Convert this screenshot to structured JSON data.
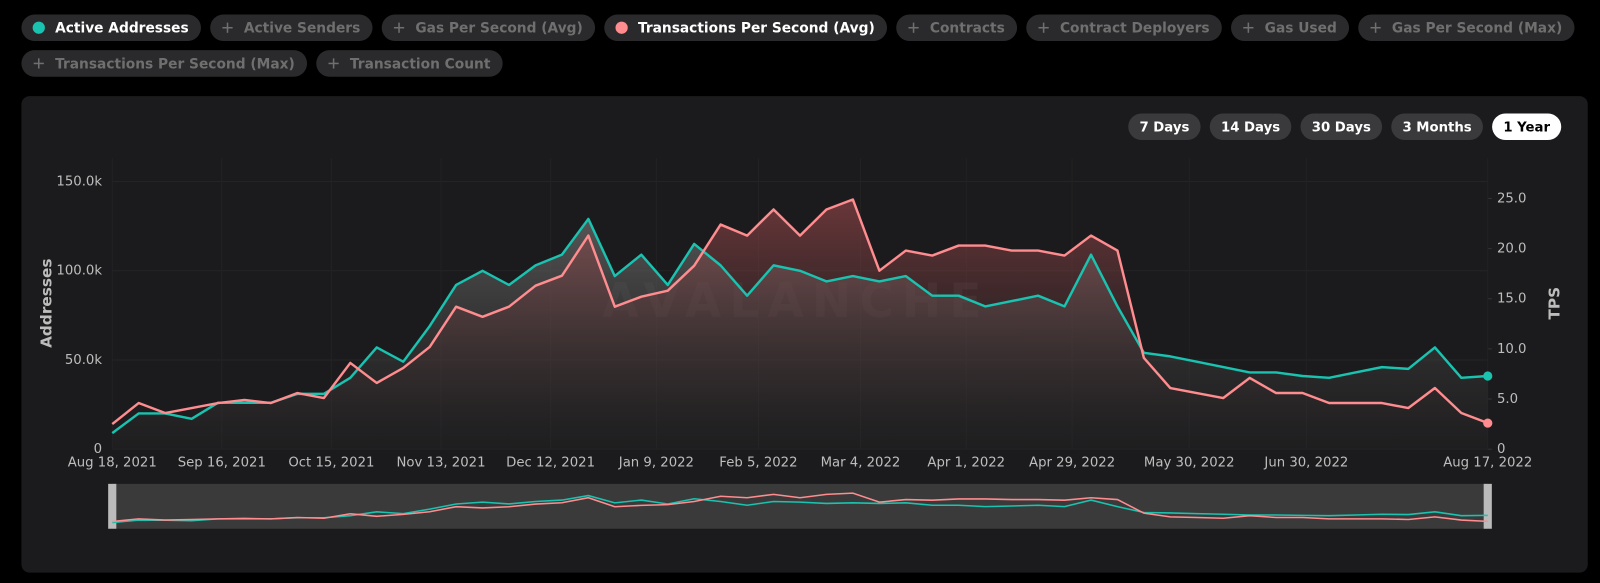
{
  "metric_tabs": [
    "Active Addresses",
    "Active Senders",
    "Gas Per Second (Avg)",
    "Transactions Per Second (Avg)",
    "Contracts",
    "Contract Deployers",
    "Gas Used",
    "Gas Per Second (Max)",
    "Transactions Per Second (Max)",
    "Transaction Count"
  ],
  "range_buttons": [
    "7 Days",
    "14 Days",
    "30 Days",
    "3 Months",
    "1 Year"
  ],
  "selected_range": "1 Year",
  "chart_data": {
    "type": "line",
    "watermark": "AVALANCHE",
    "y_label": "Addresses",
    "y2_label": "TPS",
    "x": [
      "2021-08-18",
      "2021-08-25",
      "2021-09-01",
      "2021-09-08",
      "2021-09-15",
      "2021-09-22",
      "2021-09-29",
      "2021-10-06",
      "2021-10-13",
      "2021-10-20",
      "2021-10-27",
      "2021-11-03",
      "2021-11-10",
      "2021-11-17",
      "2021-11-24",
      "2021-12-01",
      "2021-12-08",
      "2021-12-15",
      "2021-12-22",
      "2021-12-29",
      "2022-01-05",
      "2022-01-12",
      "2022-01-19",
      "2022-01-26",
      "2022-02-02",
      "2022-02-09",
      "2022-02-16",
      "2022-02-23",
      "2022-03-02",
      "2022-03-09",
      "2022-03-16",
      "2022-03-23",
      "2022-03-30",
      "2022-04-06",
      "2022-04-13",
      "2022-04-20",
      "2022-04-27",
      "2022-05-04",
      "2022-05-11",
      "2022-05-18",
      "2022-05-25",
      "2022-06-01",
      "2022-06-08",
      "2022-06-15",
      "2022-06-22",
      "2022-06-29",
      "2022-07-06",
      "2022-07-13",
      "2022-07-20",
      "2022-07-27",
      "2022-08-03",
      "2022-08-10",
      "2022-08-17"
    ],
    "xlim": [
      "2021-08-18",
      "2022-08-17"
    ],
    "xticks": [
      {
        "value": "2021-08-18",
        "label": "Aug 18, 2021"
      },
      {
        "value": "2021-09-16",
        "label": "Sep 16, 2021"
      },
      {
        "value": "2021-10-15",
        "label": "Oct 15, 2021"
      },
      {
        "value": "2021-11-13",
        "label": "Nov 13, 2021"
      },
      {
        "value": "2021-12-12",
        "label": "Dec 12, 2021"
      },
      {
        "value": "2022-01-09",
        "label": "Jan 9, 2022"
      },
      {
        "value": "2022-02-05",
        "label": "Feb 5, 2022"
      },
      {
        "value": "2022-03-04",
        "label": "Mar 4, 2022"
      },
      {
        "value": "2022-04-01",
        "label": "Apr 1, 2022"
      },
      {
        "value": "2022-04-29",
        "label": "Apr 29, 2022"
      },
      {
        "value": "2022-05-30",
        "label": "May 30, 2022"
      },
      {
        "value": "2022-06-30",
        "label": "Jun 30, 2022"
      },
      {
        "value": "2022-08-17",
        "label": "Aug 17, 2022"
      }
    ],
    "ylim": [
      0,
      163000
    ],
    "yticks": [
      0,
      {
        "value": 50000,
        "label": "50.0k"
      },
      {
        "value": 100000,
        "label": "100.0k"
      },
      {
        "value": 150000,
        "label": "150.0k"
      }
    ],
    "y2lim": [
      0,
      29
    ],
    "y2ticks": [
      0,
      {
        "value": 5,
        "label": "5.0"
      },
      {
        "value": 10,
        "label": "10.0"
      },
      {
        "value": 15,
        "label": "15.0"
      },
      {
        "value": 20,
        "label": "20.0"
      },
      {
        "value": 25,
        "label": "25.0"
      }
    ],
    "grid": true,
    "series": [
      {
        "name": "Active Addresses",
        "color": "#19c3b0",
        "values": [
          9000,
          20000,
          20000,
          17000,
          26000,
          26000,
          26000,
          31000,
          31000,
          40000,
          57000,
          49000,
          69000,
          92000,
          100000,
          92000,
          103000,
          109000,
          129000,
          97000,
          109000,
          92000,
          115000,
          103000,
          86000,
          103000,
          100000,
          94000,
          97000,
          94000,
          97000,
          86000,
          86000,
          80000,
          83000,
          86000,
          80000,
          109000,
          80000,
          54000,
          52000,
          49000,
          46000,
          43000,
          43000,
          41000,
          40000,
          43000,
          46000,
          45000,
          57000,
          40000,
          41000
        ]
      },
      {
        "name": "Transactions Per Second (Avg)",
        "color": "#ff8c8f",
        "axis": "y2",
        "values": [
          2.5,
          4.6,
          3.6,
          4.1,
          4.6,
          4.9,
          4.6,
          5.6,
          5.1,
          8.6,
          6.6,
          8.1,
          10.2,
          14.2,
          13.2,
          14.2,
          16.3,
          17.3,
          21.3,
          14.2,
          15.2,
          15.8,
          18.3,
          22.4,
          21.3,
          23.9,
          21.3,
          23.9,
          24.9,
          17.8,
          19.8,
          19.3,
          20.3,
          20.3,
          19.8,
          19.8,
          19.3,
          21.3,
          19.8,
          9.1,
          6.1,
          5.6,
          5.1,
          7.1,
          5.6,
          5.6,
          4.6,
          4.6,
          4.6,
          4.1,
          6.1,
          3.6,
          2.6
        ]
      }
    ]
  }
}
